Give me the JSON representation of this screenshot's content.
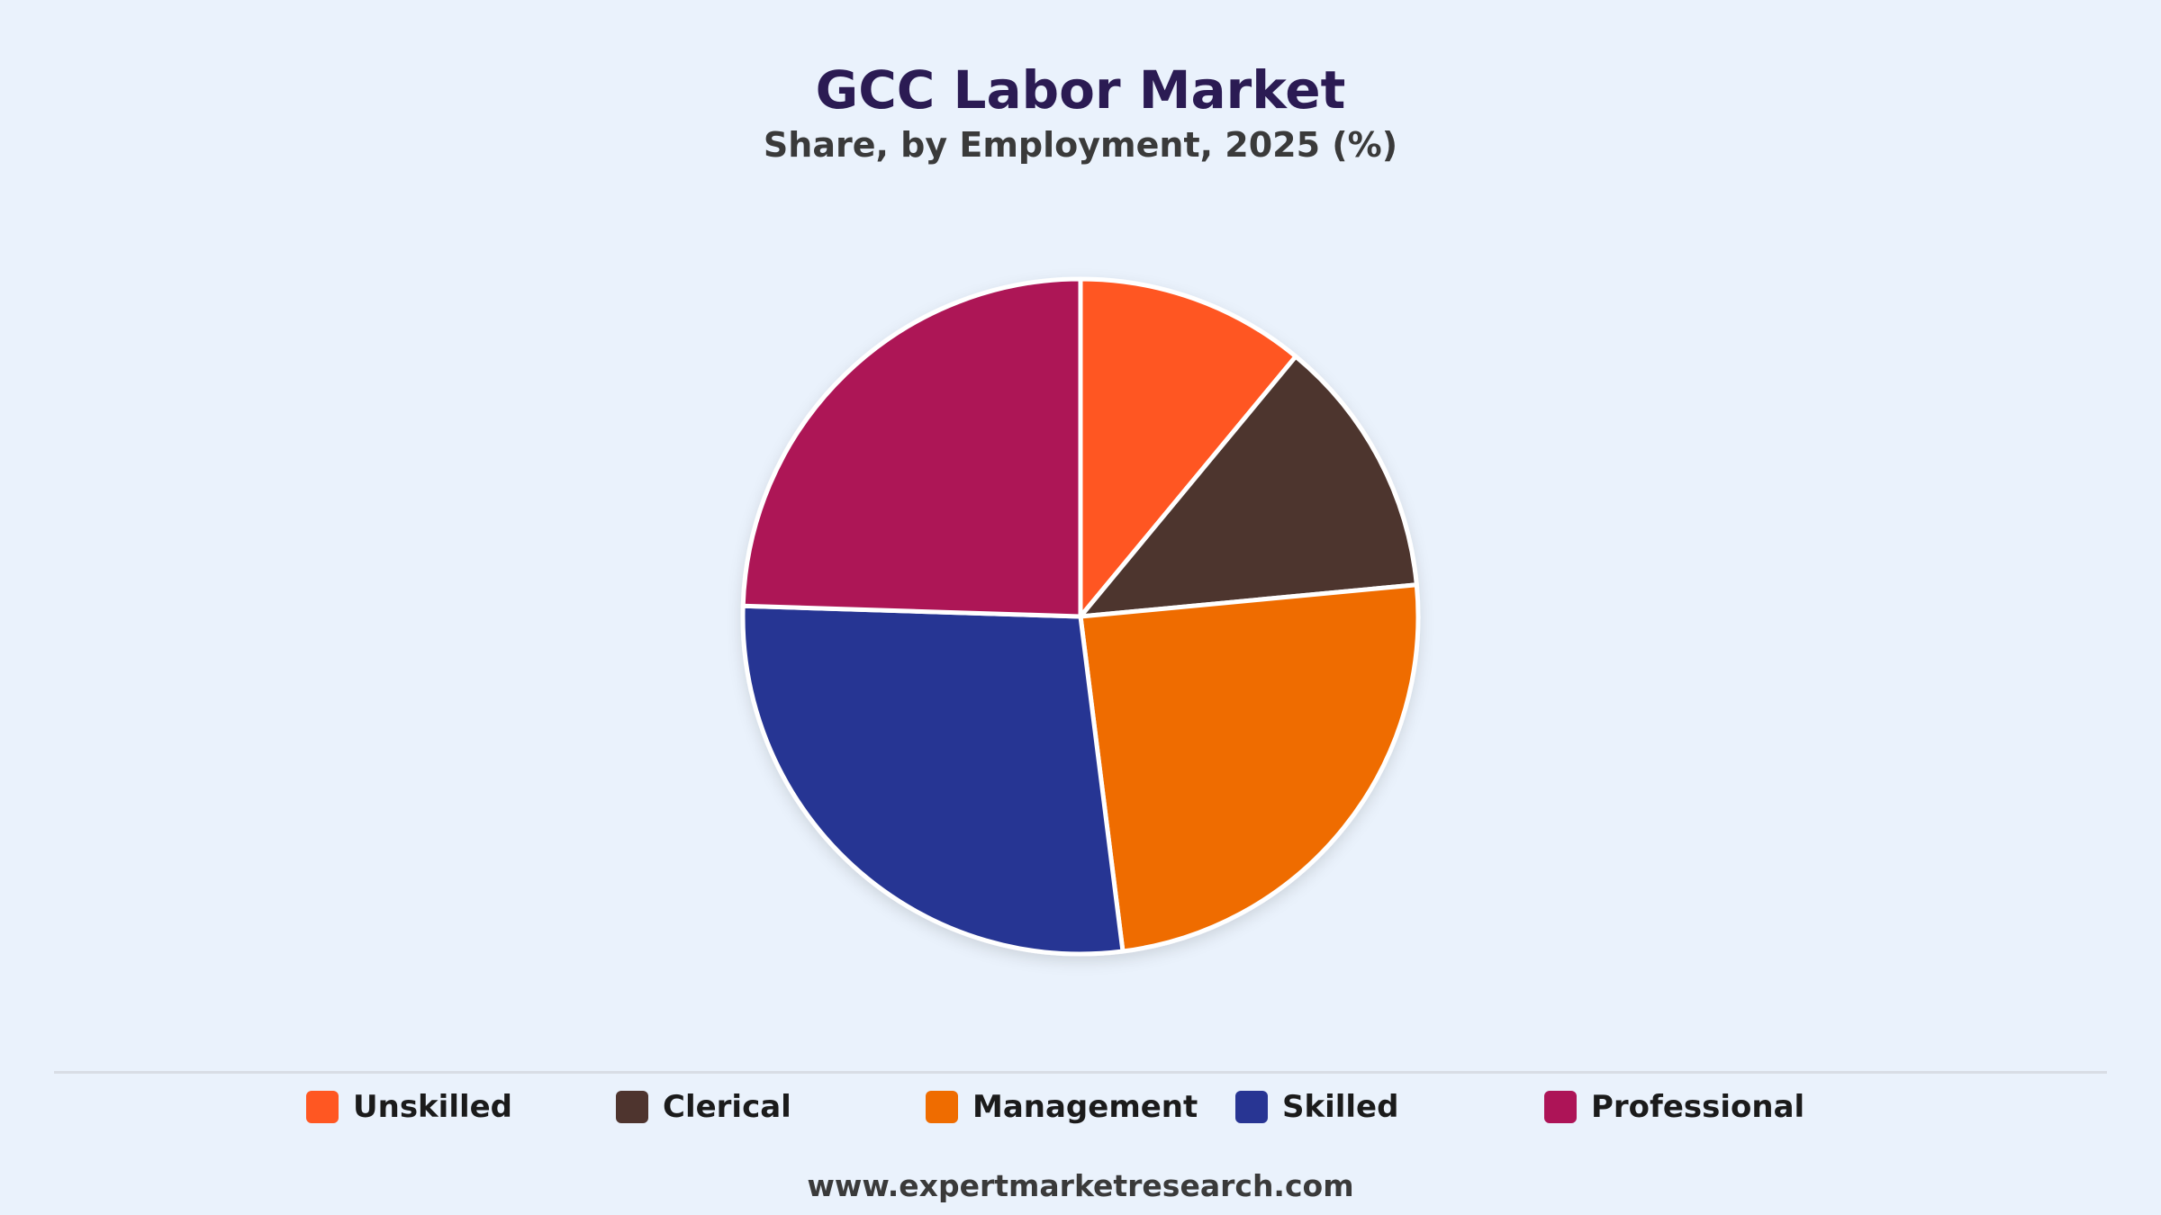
{
  "chart_data": {
    "type": "pie",
    "title": "GCC Labor Market",
    "subtitle": "Share, by Employment, 2025 (%)",
    "categories": [
      "Unskilled",
      "Clerical",
      "Management",
      "Skilled",
      "Professional"
    ],
    "values": [
      11,
      12.5,
      24.5,
      27.5,
      24.5
    ],
    "colors": [
      "#ff5722",
      "#4e342e",
      "#ef6c00",
      "#283593",
      "#ad1457"
    ],
    "legend_position": "bottom"
  },
  "footer": {
    "source": "www.expertmarketresearch.com"
  }
}
